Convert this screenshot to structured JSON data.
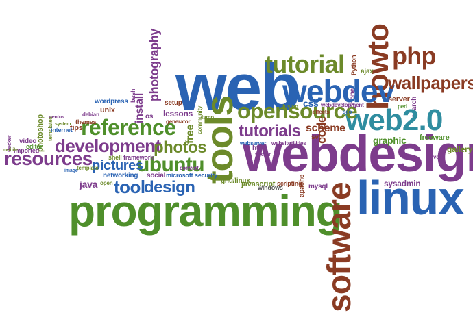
{
  "palette": {
    "blue": "#2a63b3",
    "green": "#4f8f2b",
    "purple": "#7d3c8c",
    "brown": "#8a3b23",
    "olive": "#6c8a2a",
    "teal": "#2f8da0",
    "gray": "#555555"
  },
  "words": [
    {
      "id": "web",
      "text": "web",
      "color": "blue",
      "weight": "huge"
    },
    {
      "id": "programming",
      "text": "programming",
      "color": "green",
      "weight": "huge"
    },
    {
      "id": "webdesign",
      "text": "webdesign",
      "color": "purple",
      "weight": "huge"
    },
    {
      "id": "linux",
      "text": "linux",
      "color": "blue",
      "weight": "huge"
    },
    {
      "id": "tools",
      "text": "tools",
      "color": "olive",
      "weight": "large"
    },
    {
      "id": "software",
      "text": "software",
      "color": "brown",
      "weight": "large"
    },
    {
      "id": "howto",
      "text": "howto",
      "color": "brown",
      "weight": "large"
    },
    {
      "id": "webdev",
      "text": "webdev",
      "color": "blue",
      "weight": "large"
    },
    {
      "id": "web20",
      "text": "web2.0",
      "color": "teal",
      "weight": "large"
    },
    {
      "id": "tutorial",
      "text": "tutorial",
      "color": "olive",
      "weight": "medium"
    },
    {
      "id": "opensource",
      "text": "opensource",
      "color": "olive",
      "weight": "medium"
    },
    {
      "id": "php",
      "text": "php",
      "color": "brown",
      "weight": "medium"
    },
    {
      "id": "wallpapers",
      "text": "wallpapers",
      "color": "brown",
      "weight": "medium"
    },
    {
      "id": "reference",
      "text": "reference",
      "color": "green",
      "weight": "medium"
    },
    {
      "id": "development",
      "text": "development",
      "color": "purple",
      "weight": "medium"
    },
    {
      "id": "resources",
      "text": "resources",
      "color": "purple",
      "weight": "medium"
    },
    {
      "id": "ubuntu",
      "text": "ubuntu",
      "color": "green",
      "weight": "medium"
    },
    {
      "id": "design",
      "text": "design",
      "color": "blue",
      "weight": "medium"
    },
    {
      "id": "tool",
      "text": "tool",
      "color": "blue",
      "weight": "medium"
    },
    {
      "id": "photos",
      "text": "photos",
      "color": "olive",
      "weight": "medium"
    },
    {
      "id": "pictures",
      "text": "pictures",
      "color": "blue",
      "weight": "medium"
    },
    {
      "id": "tutorials",
      "text": "tutorials",
      "color": "purple",
      "weight": "medium"
    },
    {
      "id": "code",
      "text": "code",
      "color": "brown",
      "weight": "medium"
    },
    {
      "id": "photography",
      "text": "photography",
      "color": "purple",
      "weight": "medium"
    },
    {
      "id": "install",
      "text": "install",
      "color": "purple",
      "weight": "small"
    },
    {
      "id": "free",
      "text": "free",
      "color": "olive",
      "weight": "small"
    },
    {
      "id": "css",
      "text": "css",
      "color": "blue",
      "weight": "small"
    },
    {
      "id": "scheme",
      "text": "scheme",
      "color": "brown",
      "weight": "small"
    },
    {
      "id": "graphic",
      "text": "graphic",
      "color": "green",
      "weight": "small"
    },
    {
      "id": "gallery",
      "text": "gallery",
      "color": "olive",
      "weight": "small"
    },
    {
      "id": "freeware",
      "text": "freeware",
      "color": "green",
      "weight": "small"
    },
    {
      "id": "sysadmin",
      "text": "sysadmin",
      "color": "purple",
      "weight": "small"
    },
    {
      "id": "javascript",
      "text": "javascript",
      "color": "olive",
      "weight": "small"
    },
    {
      "id": "java",
      "text": "java",
      "color": "purple",
      "weight": "small"
    },
    {
      "id": "networking",
      "text": "networking",
      "color": "blue",
      "weight": "small"
    },
    {
      "id": "mysql",
      "text": "mysql",
      "color": "purple",
      "weight": "small"
    },
    {
      "id": "apache",
      "text": "apache",
      "color": "brown",
      "weight": "small"
    },
    {
      "id": "gnulinux",
      "text": "gnu/linux",
      "color": "olive",
      "weight": "small"
    },
    {
      "id": "lessons",
      "text": "lessons",
      "color": "purple",
      "weight": "small"
    },
    {
      "id": "setup",
      "text": "setup",
      "color": "brown",
      "weight": "small"
    },
    {
      "id": "server",
      "text": "server",
      "color": "brown",
      "weight": "small"
    },
    {
      "id": "phone",
      "text": "phone",
      "color": "purple",
      "weight": "small"
    },
    {
      "id": "search",
      "text": "search",
      "color": "purple",
      "weight": "small"
    },
    {
      "id": "python",
      "text": "Python",
      "color": "brown",
      "weight": "small"
    },
    {
      "id": "ajax",
      "text": "ajax",
      "color": "olive",
      "weight": "small"
    },
    {
      "id": "html",
      "text": "html",
      "color": "purple",
      "weight": "small"
    },
    {
      "id": "windows",
      "text": "windows",
      "color": "gray",
      "weight": "small"
    },
    {
      "id": "scripting",
      "text": "scripting",
      "color": "brown",
      "weight": "small"
    },
    {
      "id": "svn",
      "text": "svn",
      "color": "brown",
      "weight": "small"
    },
    {
      "id": "social",
      "text": "social",
      "color": "purple",
      "weight": "small"
    },
    {
      "id": "microsoft",
      "text": "microsoft",
      "color": "blue",
      "weight": "small"
    },
    {
      "id": "security",
      "text": "security",
      "color": "blue",
      "weight": "small"
    },
    {
      "id": "shell",
      "text": "shell",
      "color": "olive",
      "weight": "small"
    },
    {
      "id": "framework",
      "text": "framework",
      "color": "purple",
      "weight": "small"
    },
    {
      "id": "open",
      "text": "open",
      "color": "olive",
      "weight": "small"
    },
    {
      "id": "unix",
      "text": "unix",
      "color": "brown",
      "weight": "small"
    },
    {
      "id": "bash",
      "text": "bash",
      "color": "purple",
      "weight": "small"
    },
    {
      "id": "wordpress",
      "text": "wordpress",
      "color": "blue",
      "weight": "small"
    },
    {
      "id": "tips",
      "text": "tips",
      "color": "brown",
      "weight": "small"
    },
    {
      "id": "internet",
      "text": "internet",
      "color": "blue",
      "weight": "small"
    },
    {
      "id": "themes",
      "text": "themes",
      "color": "brown",
      "weight": "small"
    },
    {
      "id": "photoshop",
      "text": "photoshop",
      "color": "olive",
      "weight": "small"
    },
    {
      "id": "video",
      "text": "video",
      "color": "purple",
      "weight": "small"
    },
    {
      "id": "editor",
      "text": "editor",
      "color": "green",
      "weight": "small"
    },
    {
      "id": "imported",
      "text": "imported",
      "color": "purple",
      "weight": "small"
    },
    {
      "id": "templates",
      "text": "templates",
      "color": "olive",
      "weight": "small"
    },
    {
      "id": "debian",
      "text": "debian",
      "color": "purple",
      "weight": "small"
    },
    {
      "id": "os",
      "text": "os",
      "color": "purple",
      "weight": "small"
    },
    {
      "id": "generator",
      "text": "generator",
      "color": "brown",
      "weight": "small"
    },
    {
      "id": "community",
      "text": "community",
      "color": "olive",
      "weight": "small"
    },
    {
      "id": "fusion",
      "text": "fusion",
      "color": "olive",
      "weight": "small"
    },
    {
      "id": "webdevelopment",
      "text": "webdevelopment",
      "color": "purple",
      "weight": "small"
    },
    {
      "id": "seo",
      "text": "seo",
      "color": "blue",
      "weight": "small"
    },
    {
      "id": "perl",
      "text": "perl",
      "color": "green",
      "weight": "small"
    },
    {
      "id": "voip",
      "text": "voip",
      "color": "purple",
      "weight": "small"
    },
    {
      "id": "vector",
      "text": "vector",
      "color": "purple",
      "weight": "small"
    },
    {
      "id": "utilities",
      "text": "utilities",
      "color": "purple",
      "weight": "small"
    },
    {
      "id": "webserver",
      "text": "webserver",
      "color": "blue",
      "weight": "small"
    },
    {
      "id": "website",
      "text": "website",
      "color": "purple",
      "weight": "small"
    },
    {
      "id": "lamp",
      "text": "lamp",
      "color": "olive",
      "weight": "small"
    },
    {
      "id": "convert",
      "text": "convert",
      "color": "purple",
      "weight": "small"
    },
    {
      "id": "template",
      "text": "template",
      "color": "olive",
      "weight": "small"
    },
    {
      "id": "image",
      "text": "image",
      "color": "blue",
      "weight": "small"
    },
    {
      "id": "mobile",
      "text": "mobile",
      "color": "olive",
      "weight": "small"
    },
    {
      "id": "decker",
      "text": "decker",
      "color": "purple",
      "weight": "small"
    },
    {
      "id": "centos",
      "text": "centos",
      "color": "purple",
      "weight": "small"
    },
    {
      "id": "system",
      "text": "system",
      "color": "olive",
      "weight": "small"
    },
    {
      "id": "effects",
      "text": "effects",
      "color": "brown",
      "weight": "small"
    }
  ]
}
